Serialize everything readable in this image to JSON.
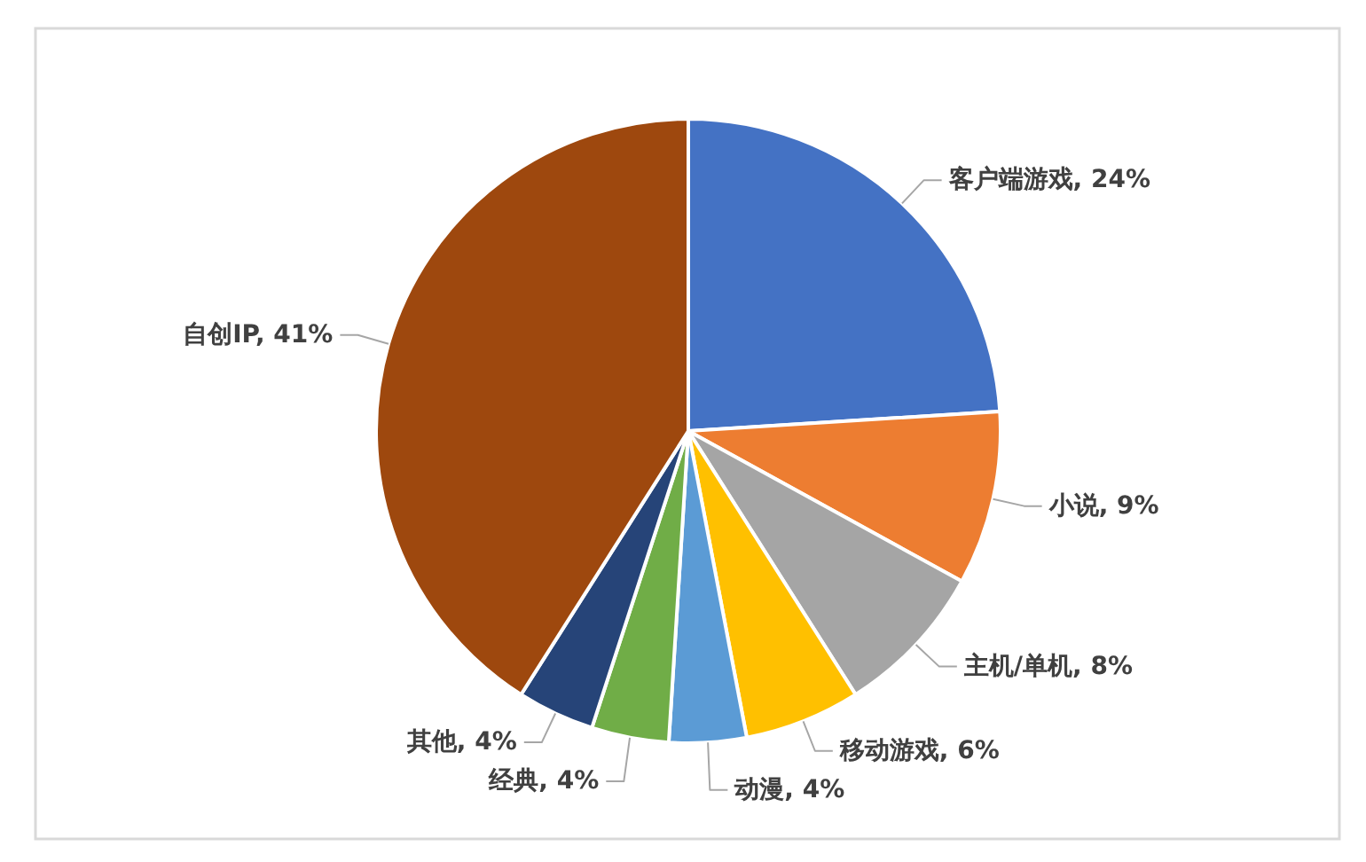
{
  "chart_data": {
    "type": "pie",
    "categories": [
      "客户端游戏",
      "小说",
      "主机/单机",
      "移动游戏",
      "动漫",
      "经典",
      "其他",
      "自创IP"
    ],
    "values": [
      24,
      9,
      8,
      6,
      4,
      4,
      4,
      41
    ],
    "colors": [
      "#4472c4",
      "#ed7d31",
      "#a5a5a5",
      "#ffc000",
      "#5b9bd5",
      "#70ad47",
      "#264478",
      "#9e480e"
    ],
    "value_labels": [
      "24%",
      "9%",
      "8%",
      "6%",
      "4%",
      "4%",
      "4%",
      "41%"
    ]
  }
}
